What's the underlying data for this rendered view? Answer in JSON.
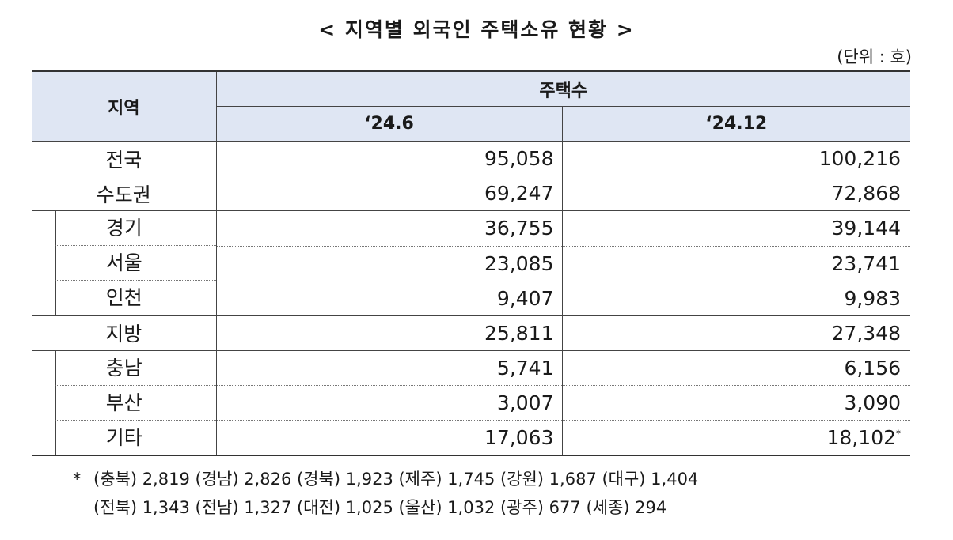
{
  "title": "< 지역별 외국인 주택소유 현황 >",
  "unit": "(단위 : 호)",
  "table": {
    "header_region": "지역",
    "header_group": "주택수",
    "col1": "‘24.6",
    "col2": "‘24.12",
    "rows": [
      {
        "region": "전국",
        "v1": "95,058",
        "v2": "100,216"
      },
      {
        "region": "수도권",
        "v1": "69,247",
        "v2": "72,868"
      },
      {
        "region": "경기",
        "v1": "36,755",
        "v2": "39,144"
      },
      {
        "region": "서울",
        "v1": "23,085",
        "v2": "23,741"
      },
      {
        "region": "인천",
        "v1": "9,407",
        "v2": "9,983"
      },
      {
        "region": "지방",
        "v1": "25,811",
        "v2": "27,348"
      },
      {
        "region": "충남",
        "v1": "5,741",
        "v2": "6,156"
      },
      {
        "region": "부산",
        "v1": "3,007",
        "v2": "3,090"
      },
      {
        "region": "기타",
        "v1": "17,063",
        "v2": "18,102",
        "v2_mark": "*"
      }
    ]
  },
  "footnote": {
    "marker": "*",
    "line1": "(충북) 2,819 (경남) 2,826 (경북) 1,923 (제주) 1,745 (강원) 1,687 (대구) 1,404",
    "line2": "(전북) 1,343 (전남) 1,327 (대전) 1,025 (울산) 1,032 (광주) 677 (세종) 294"
  }
}
